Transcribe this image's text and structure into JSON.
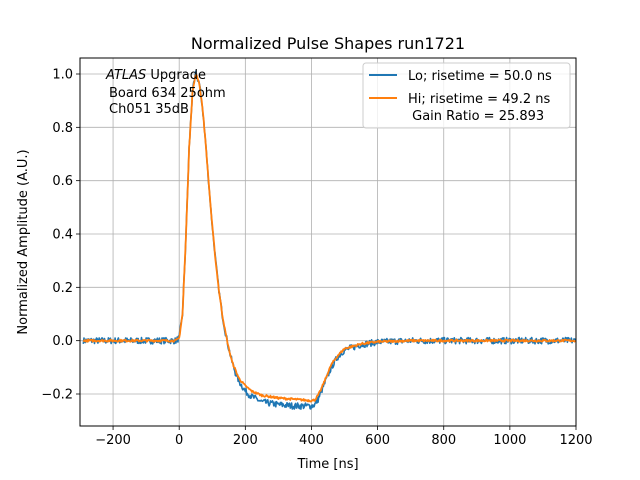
{
  "chart_data": {
    "type": "line",
    "title": "Normalized Pulse Shapes run1721",
    "xlabel": "Time [ns]",
    "ylabel": "Normalized Amplitude (A.U.)",
    "xlim": [
      -300,
      1200
    ],
    "ylim": [
      -0.32,
      1.06
    ],
    "xticks": [
      -200,
      0,
      200,
      400,
      600,
      800,
      1000,
      1200
    ],
    "xtick_labels": [
      "−200",
      "0",
      "200",
      "400",
      "600",
      "800",
      "1000",
      "1200"
    ],
    "yticks": [
      -0.2,
      0.0,
      0.2,
      0.4,
      0.6,
      0.8,
      1.0
    ],
    "ytick_labels": [
      "−0.2",
      "0.0",
      "0.2",
      "0.4",
      "0.6",
      "0.8",
      "1.0"
    ],
    "grid": true,
    "legend_position": "top-right",
    "annotation": {
      "atlas": "ATLAS",
      "upgrade": " Upgrade",
      "line2": "Board 634 25ohm",
      "line3": "Ch051 35dB"
    },
    "series": [
      {
        "name": "Lo; risetime = 50.0 ns",
        "color": "#1f77b4",
        "noise": 0.012,
        "x": [
          -290,
          -100,
          -10,
          0,
          10,
          20,
          30,
          40,
          50,
          60,
          70,
          80,
          90,
          100,
          110,
          120,
          130,
          140,
          150,
          160,
          170,
          180,
          200,
          220,
          250,
          300,
          350,
          400,
          410,
          420,
          430,
          440,
          460,
          480,
          500,
          550,
          600,
          700,
          800,
          900,
          1000,
          1100,
          1200
        ],
        "y": [
          0.0,
          0.0,
          0.0,
          0.01,
          0.1,
          0.38,
          0.72,
          0.93,
          1.0,
          0.97,
          0.88,
          0.74,
          0.58,
          0.43,
          0.3,
          0.19,
          0.1,
          0.03,
          -0.03,
          -0.08,
          -0.12,
          -0.15,
          -0.19,
          -0.21,
          -0.23,
          -0.24,
          -0.245,
          -0.245,
          -0.24,
          -0.22,
          -0.19,
          -0.16,
          -0.1,
          -0.06,
          -0.035,
          -0.015,
          -0.005,
          0.0,
          0.0,
          0.0,
          0.0,
          0.0,
          0.0
        ]
      },
      {
        "name": "Hi; risetime = 49.2 ns",
        "name_line2": " Gain Ratio = 25.893",
        "color": "#ff7f0e",
        "noise": 0.004,
        "x": [
          -290,
          -100,
          -10,
          0,
          10,
          20,
          30,
          40,
          50,
          60,
          70,
          80,
          90,
          100,
          110,
          120,
          130,
          140,
          150,
          160,
          170,
          180,
          200,
          220,
          250,
          300,
          350,
          400,
          410,
          420,
          430,
          440,
          460,
          480,
          500,
          550,
          600,
          700,
          800,
          900,
          1000,
          1100,
          1200
        ],
        "y": [
          0.0,
          0.0,
          0.0,
          0.01,
          0.1,
          0.38,
          0.72,
          0.93,
          1.0,
          0.97,
          0.88,
          0.74,
          0.58,
          0.43,
          0.3,
          0.19,
          0.1,
          0.03,
          -0.03,
          -0.08,
          -0.11,
          -0.14,
          -0.17,
          -0.19,
          -0.205,
          -0.215,
          -0.22,
          -0.225,
          -0.222,
          -0.205,
          -0.18,
          -0.15,
          -0.09,
          -0.055,
          -0.03,
          -0.012,
          -0.004,
          0.0,
          0.0,
          0.0,
          0.0,
          0.0,
          0.0
        ]
      }
    ]
  }
}
